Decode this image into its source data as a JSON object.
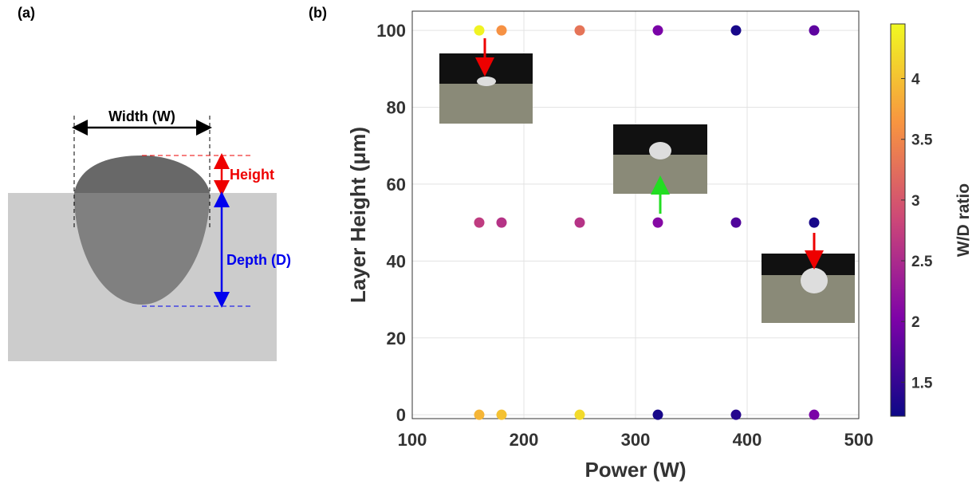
{
  "panel_a": {
    "label": "(a)",
    "width_label": "Width (W)",
    "height_label": "Height",
    "depth_label": "Depth (D)"
  },
  "chart_data": {
    "type": "scatter",
    "panel_label": "(b)",
    "xlabel": "Power (W)",
    "ylabel": "Layer Height (μm)",
    "xlim": [
      100,
      500
    ],
    "xticks": [
      100,
      200,
      300,
      400,
      500
    ],
    "ylim": [
      -1,
      105
    ],
    "yticks": [
      0,
      20,
      40,
      60,
      80,
      100
    ],
    "grid": true,
    "colormap": "plasma",
    "colorbar_label": "W/D ratio",
    "clim": [
      1.22,
      4.45
    ],
    "cticks": [
      1.5,
      2,
      2.5,
      3,
      3.5,
      4
    ],
    "series": [
      {
        "x": [
          160,
          180,
          250,
          320,
          390,
          460,
          160,
          180,
          250,
          320,
          390,
          460,
          160,
          180,
          250,
          320,
          390,
          460
        ],
        "values": [
          100,
          100,
          100,
          100,
          100,
          100,
          50,
          50,
          50,
          50,
          50,
          50,
          0,
          0,
          0,
          0,
          0,
          0
        ],
        "wd": [
          4.4,
          3.6,
          3.3,
          2.0,
          1.3,
          1.8,
          2.7,
          2.6,
          2.6,
          2.1,
          1.7,
          1.3,
          3.9,
          4.0,
          4.2,
          1.3,
          1.4,
          2.0
        ]
      }
    ]
  }
}
